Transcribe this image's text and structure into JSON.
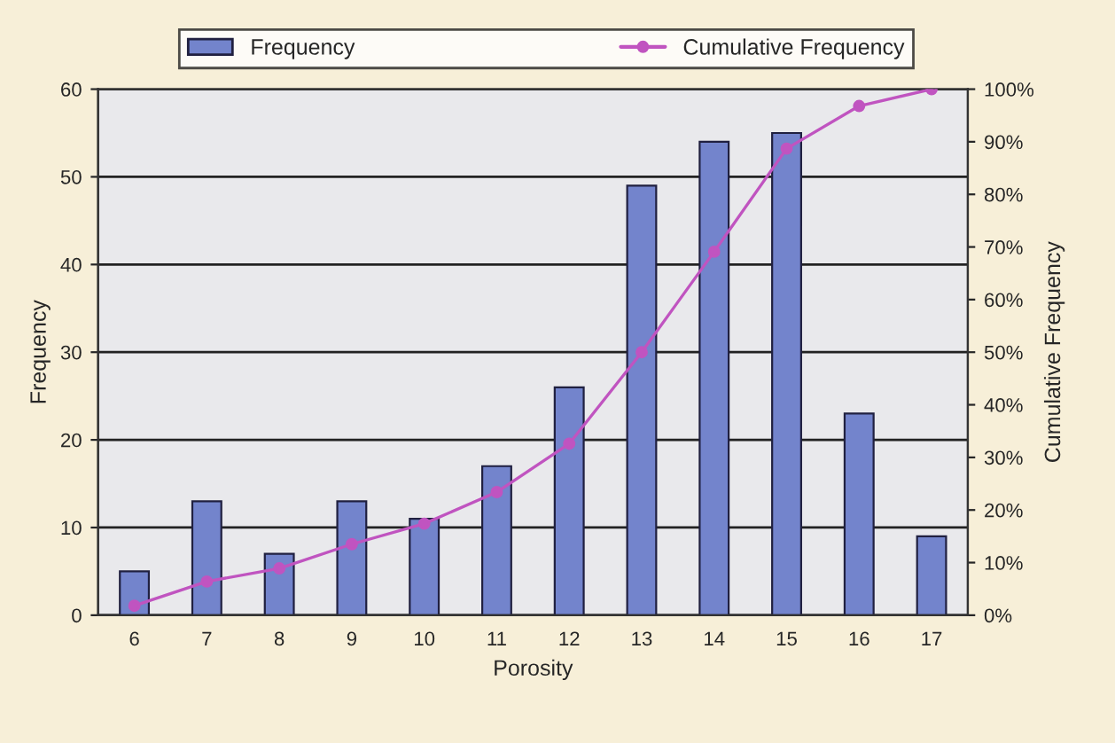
{
  "chart_data": {
    "type": "bar",
    "xlabel": "Porosity",
    "ylabel": "Frequency",
    "y2label": "Cumulative Frequency",
    "categories": [
      "6",
      "7",
      "8",
      "9",
      "10",
      "11",
      "12",
      "13",
      "14",
      "15",
      "16",
      "17"
    ],
    "series": [
      {
        "name": "Frequency",
        "color": "#7384cc",
        "values": [
          5,
          13,
          7,
          13,
          11,
          17,
          26,
          49,
          54,
          55,
          23,
          9
        ]
      },
      {
        "name": "Cumulative Frequency",
        "type": "line",
        "axis": "y2",
        "color": "#c054c0",
        "marker": "circle",
        "values": [
          1.8,
          6.4,
          8.9,
          13.5,
          17.4,
          23.4,
          32.6,
          50.0,
          69.1,
          88.7,
          96.8,
          100.0
        ]
      }
    ],
    "ylim": [
      0,
      60
    ],
    "yticks": [
      0,
      10,
      20,
      30,
      40,
      50,
      60
    ],
    "y2lim": [
      0,
      100
    ],
    "y2ticks": [
      {
        "value": 0,
        "label": "0%"
      },
      {
        "value": 10,
        "label": "10%"
      },
      {
        "value": 20,
        "label": "20%"
      },
      {
        "value": 30,
        "label": "30%"
      },
      {
        "value": 40,
        "label": "40%"
      },
      {
        "value": 50,
        "label": "50%"
      },
      {
        "value": 60,
        "label": "60%"
      },
      {
        "value": 70,
        "label": "70%"
      },
      {
        "value": 80,
        "label": "80%"
      },
      {
        "value": 90,
        "label": "90%"
      },
      {
        "value": 100,
        "label": "100%"
      }
    ],
    "grid": "y",
    "legend": "top"
  }
}
